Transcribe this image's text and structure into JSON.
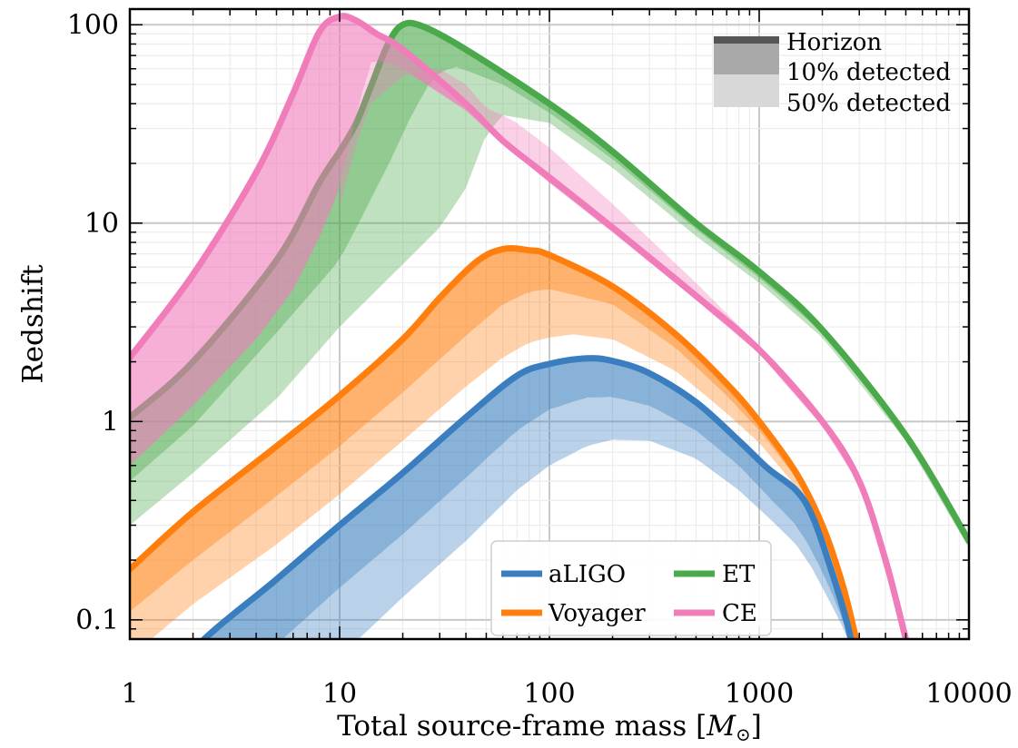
{
  "chart_data": {
    "type": "area",
    "xlabel": "Total source-frame mass",
    "xlabel_unit": "M",
    "xlabel_unit_subscript": "⊙",
    "ylabel": "Redshift",
    "xscale": "log",
    "yscale": "log",
    "xlim": [
      1,
      10000
    ],
    "ylim": [
      0.08,
      120
    ],
    "xticks": [
      1,
      10,
      100,
      1000,
      10000
    ],
    "xtick_labels": [
      "1",
      "10",
      "100",
      "1000",
      "10000"
    ],
    "yticks": [
      0.1,
      1,
      10,
      100
    ],
    "ytick_labels": [
      "0.1",
      "1",
      "10",
      "100"
    ],
    "grid": true,
    "band_legend_position": "top-right",
    "band_legend": [
      {
        "label": "Horizon",
        "style": "line"
      },
      {
        "label": "10% detected",
        "style": "dark-fill"
      },
      {
        "label": "50% detected",
        "style": "light-fill"
      }
    ],
    "detector_legend_position": "lower-center",
    "series": [
      {
        "name": "aLIGO",
        "color": "#3a7ebf",
        "horizon": [
          [
            1.4,
            0.035
          ],
          [
            2,
            0.07
          ],
          [
            5,
            0.16
          ],
          [
            10,
            0.3
          ],
          [
            20,
            0.55
          ],
          [
            40,
            1.05
          ],
          [
            70,
            1.7
          ],
          [
            100,
            1.95
          ],
          [
            150,
            2.08
          ],
          [
            200,
            2.02
          ],
          [
            300,
            1.75
          ],
          [
            500,
            1.25
          ],
          [
            800,
            0.8
          ],
          [
            1100,
            0.58
          ],
          [
            1500,
            0.45
          ],
          [
            1800,
            0.33
          ],
          [
            2200,
            0.18
          ],
          [
            2600,
            0.1
          ],
          [
            2900,
            0.06
          ]
        ],
        "detected_10": [
          [
            1.5,
            0.02
          ],
          [
            2,
            0.03
          ],
          [
            5,
            0.075
          ],
          [
            10,
            0.145
          ],
          [
            20,
            0.27
          ],
          [
            40,
            0.52
          ],
          [
            70,
            0.9
          ],
          [
            100,
            1.15
          ],
          [
            150,
            1.32
          ],
          [
            200,
            1.33
          ],
          [
            300,
            1.2
          ],
          [
            500,
            0.9
          ],
          [
            800,
            0.6
          ],
          [
            1100,
            0.42
          ],
          [
            1500,
            0.3
          ],
          [
            1800,
            0.22
          ],
          [
            2200,
            0.14
          ],
          [
            2600,
            0.09
          ],
          [
            2900,
            0.06
          ]
        ],
        "detected_50": [
          [
            2,
            0.015
          ],
          [
            5,
            0.035
          ],
          [
            10,
            0.065
          ],
          [
            20,
            0.13
          ],
          [
            40,
            0.25
          ],
          [
            70,
            0.45
          ],
          [
            100,
            0.6
          ],
          [
            150,
            0.75
          ],
          [
            200,
            0.81
          ],
          [
            300,
            0.8
          ],
          [
            500,
            0.65
          ],
          [
            800,
            0.45
          ],
          [
            1100,
            0.33
          ],
          [
            1500,
            0.24
          ],
          [
            1800,
            0.18
          ],
          [
            2200,
            0.12
          ],
          [
            2600,
            0.085
          ],
          [
            2900,
            0.06
          ]
        ]
      },
      {
        "name": "Voyager",
        "color": "#ff7f0e",
        "horizon": [
          [
            1,
            0.18
          ],
          [
            2,
            0.35
          ],
          [
            5,
            0.75
          ],
          [
            10,
            1.35
          ],
          [
            20,
            2.6
          ],
          [
            30,
            4.2
          ],
          [
            45,
            6.4
          ],
          [
            60,
            7.4
          ],
          [
            80,
            7.3
          ],
          [
            100,
            6.9
          ],
          [
            200,
            4.8
          ],
          [
            400,
            2.75
          ],
          [
            700,
            1.55
          ],
          [
            1000,
            1.0
          ],
          [
            1500,
            0.55
          ],
          [
            2000,
            0.3
          ],
          [
            2500,
            0.15
          ],
          [
            2900,
            0.08
          ]
        ],
        "detected_10": [
          [
            1,
            0.11
          ],
          [
            2,
            0.2
          ],
          [
            5,
            0.42
          ],
          [
            10,
            0.75
          ],
          [
            20,
            1.4
          ],
          [
            40,
            2.7
          ],
          [
            60,
            3.9
          ],
          [
            80,
            4.5
          ],
          [
            100,
            4.65
          ],
          [
            200,
            3.9
          ],
          [
            400,
            2.35
          ],
          [
            700,
            1.35
          ],
          [
            1000,
            0.9
          ],
          [
            1500,
            0.52
          ],
          [
            2000,
            0.29
          ],
          [
            2500,
            0.15
          ],
          [
            2900,
            0.08
          ]
        ],
        "detected_50": [
          [
            1,
            0.065
          ],
          [
            2,
            0.12
          ],
          [
            5,
            0.24
          ],
          [
            10,
            0.43
          ],
          [
            20,
            0.8
          ],
          [
            40,
            1.5
          ],
          [
            60,
            2.1
          ],
          [
            80,
            2.5
          ],
          [
            100,
            2.65
          ],
          [
            130,
            2.75
          ],
          [
            200,
            2.6
          ],
          [
            400,
            1.8
          ],
          [
            700,
            1.1
          ],
          [
            1000,
            0.78
          ],
          [
            1500,
            0.47
          ],
          [
            2000,
            0.27
          ],
          [
            2500,
            0.15
          ],
          [
            2900,
            0.08
          ]
        ]
      },
      {
        "name": "ET",
        "color": "#4aa94a",
        "horizon": [
          [
            1,
            1.05
          ],
          [
            2,
            2.0
          ],
          [
            5,
            6.5
          ],
          [
            8,
            16
          ],
          [
            10,
            23
          ],
          [
            12,
            32
          ],
          [
            14,
            48
          ],
          [
            17,
            80
          ],
          [
            20,
            100
          ],
          [
            25,
            98
          ],
          [
            40,
            75
          ],
          [
            100,
            40
          ],
          [
            200,
            23
          ],
          [
            500,
            10
          ],
          [
            1000,
            5.7
          ],
          [
            2000,
            2.9
          ],
          [
            5000,
            0.85
          ],
          [
            10000,
            0.25
          ]
        ],
        "detected_10": [
          [
            1,
            0.5
          ],
          [
            2,
            0.95
          ],
          [
            5,
            2.8
          ],
          [
            10,
            6.5
          ],
          [
            14,
            13
          ],
          [
            18,
            22
          ],
          [
            22,
            35
          ],
          [
            28,
            55
          ],
          [
            35,
            62
          ],
          [
            60,
            50
          ],
          [
            100,
            36
          ],
          [
            200,
            21
          ],
          [
            500,
            9.3
          ],
          [
            1000,
            5.3
          ],
          [
            2000,
            2.8
          ],
          [
            5000,
            0.83
          ],
          [
            10000,
            0.24
          ]
        ],
        "detected_50": [
          [
            1,
            0.3
          ],
          [
            2,
            0.55
          ],
          [
            5,
            1.3
          ],
          [
            10,
            3.0
          ],
          [
            20,
            6.2
          ],
          [
            30,
            9.5
          ],
          [
            40,
            15
          ],
          [
            50,
            28
          ],
          [
            60,
            35
          ],
          [
            100,
            32
          ],
          [
            200,
            19
          ],
          [
            500,
            8.6
          ],
          [
            1000,
            5.0
          ],
          [
            2000,
            2.65
          ],
          [
            5000,
            0.8
          ],
          [
            10000,
            0.23
          ]
        ]
      },
      {
        "name": "CE",
        "color": "#f07cba",
        "horizon": [
          [
            1,
            2.1
          ],
          [
            2,
            5.5
          ],
          [
            4,
            18
          ],
          [
            6,
            45
          ],
          [
            8,
            92
          ],
          [
            10,
            110
          ],
          [
            12,
            105
          ],
          [
            15,
            90
          ],
          [
            20,
            75
          ],
          [
            40,
            40
          ],
          [
            60,
            26
          ],
          [
            100,
            17
          ],
          [
            200,
            9.5
          ],
          [
            500,
            4.3
          ],
          [
            1000,
            2.3
          ],
          [
            2000,
            1.0
          ],
          [
            3000,
            0.5
          ],
          [
            4000,
            0.2
          ],
          [
            5000,
            0.08
          ]
        ],
        "detected_10": [
          [
            1,
            0.6
          ],
          [
            2,
            1.2
          ],
          [
            4,
            2.6
          ],
          [
            6,
            4.6
          ],
          [
            8,
            8.5
          ],
          [
            10,
            15
          ],
          [
            12,
            35
          ],
          [
            14,
            65
          ],
          [
            16,
            66
          ],
          [
            20,
            60
          ],
          [
            40,
            37
          ],
          [
            60,
            25
          ],
          [
            100,
            16
          ],
          [
            200,
            9
          ],
          [
            500,
            4.1
          ],
          [
            1000,
            2.2
          ],
          [
            2000,
            0.95
          ],
          [
            3000,
            0.48
          ],
          [
            4000,
            0.2
          ],
          [
            5000,
            0.08
          ]
        ],
        "detected_50": [
          [
            10,
            12
          ],
          [
            12,
            25
          ],
          [
            14,
            40
          ],
          [
            20,
            55
          ],
          [
            30,
            60
          ],
          [
            40,
            50
          ],
          [
            50,
            38
          ],
          [
            60,
            35
          ],
          [
            70,
            32
          ],
          [
            100,
            24
          ],
          [
            200,
            12.5
          ],
          [
            500,
            5
          ],
          [
            1000,
            2.4
          ],
          [
            2000,
            0.95
          ],
          [
            3000,
            0.48
          ],
          [
            4000,
            0.2
          ],
          [
            5000,
            0.08
          ]
        ]
      }
    ]
  }
}
